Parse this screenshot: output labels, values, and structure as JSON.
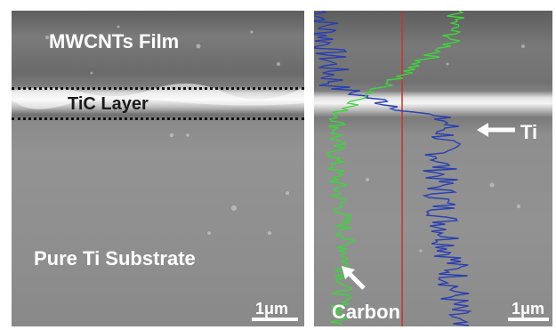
{
  "left_panel": {
    "film_label": "MWCNTs Film",
    "layer_label": "TiC Layer",
    "substrate_label": "Pure Ti Substrate",
    "scale_label": "1μm"
  },
  "right_panel": {
    "ti_label": "Ti",
    "carbon_label": "Carbon",
    "scale_label": "1μm",
    "colors": {
      "ti_profile": "#2a3fb0",
      "carbon_profile": "#3ed43e",
      "scan_line": "#c8322e"
    }
  }
}
